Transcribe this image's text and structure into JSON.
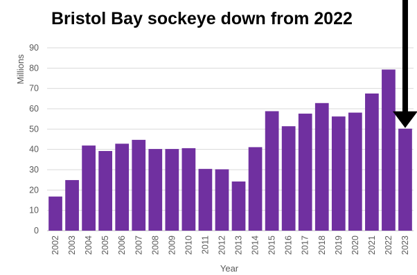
{
  "chart_data": {
    "type": "bar",
    "title": "Bristol Bay sockeye down from 2022",
    "xlabel": "Year",
    "ylabel": "Millions",
    "ylim": [
      0,
      90
    ],
    "yticks": [
      0,
      10,
      20,
      30,
      40,
      50,
      60,
      70,
      80,
      90
    ],
    "grid": true,
    "legend": "none",
    "bar_color": "#7030A0",
    "categories": [
      "2002",
      "2003",
      "2004",
      "2005",
      "2006",
      "2007",
      "2008",
      "2009",
      "2010",
      "2011",
      "2012",
      "2013",
      "2014",
      "2015",
      "2016",
      "2017",
      "2018",
      "2019",
      "2020",
      "2021",
      "2022",
      "2023"
    ],
    "values": [
      16.8,
      24.9,
      41.9,
      39.2,
      42.8,
      44.7,
      40.2,
      40.2,
      40.6,
      30.4,
      30.2,
      24.2,
      41.1,
      58.8,
      51.4,
      57.6,
      62.8,
      56.2,
      58.1,
      67.5,
      79.3,
      50.2
    ],
    "annotation": {
      "type": "arrow",
      "points_to": "2023",
      "color": "#000000"
    }
  }
}
